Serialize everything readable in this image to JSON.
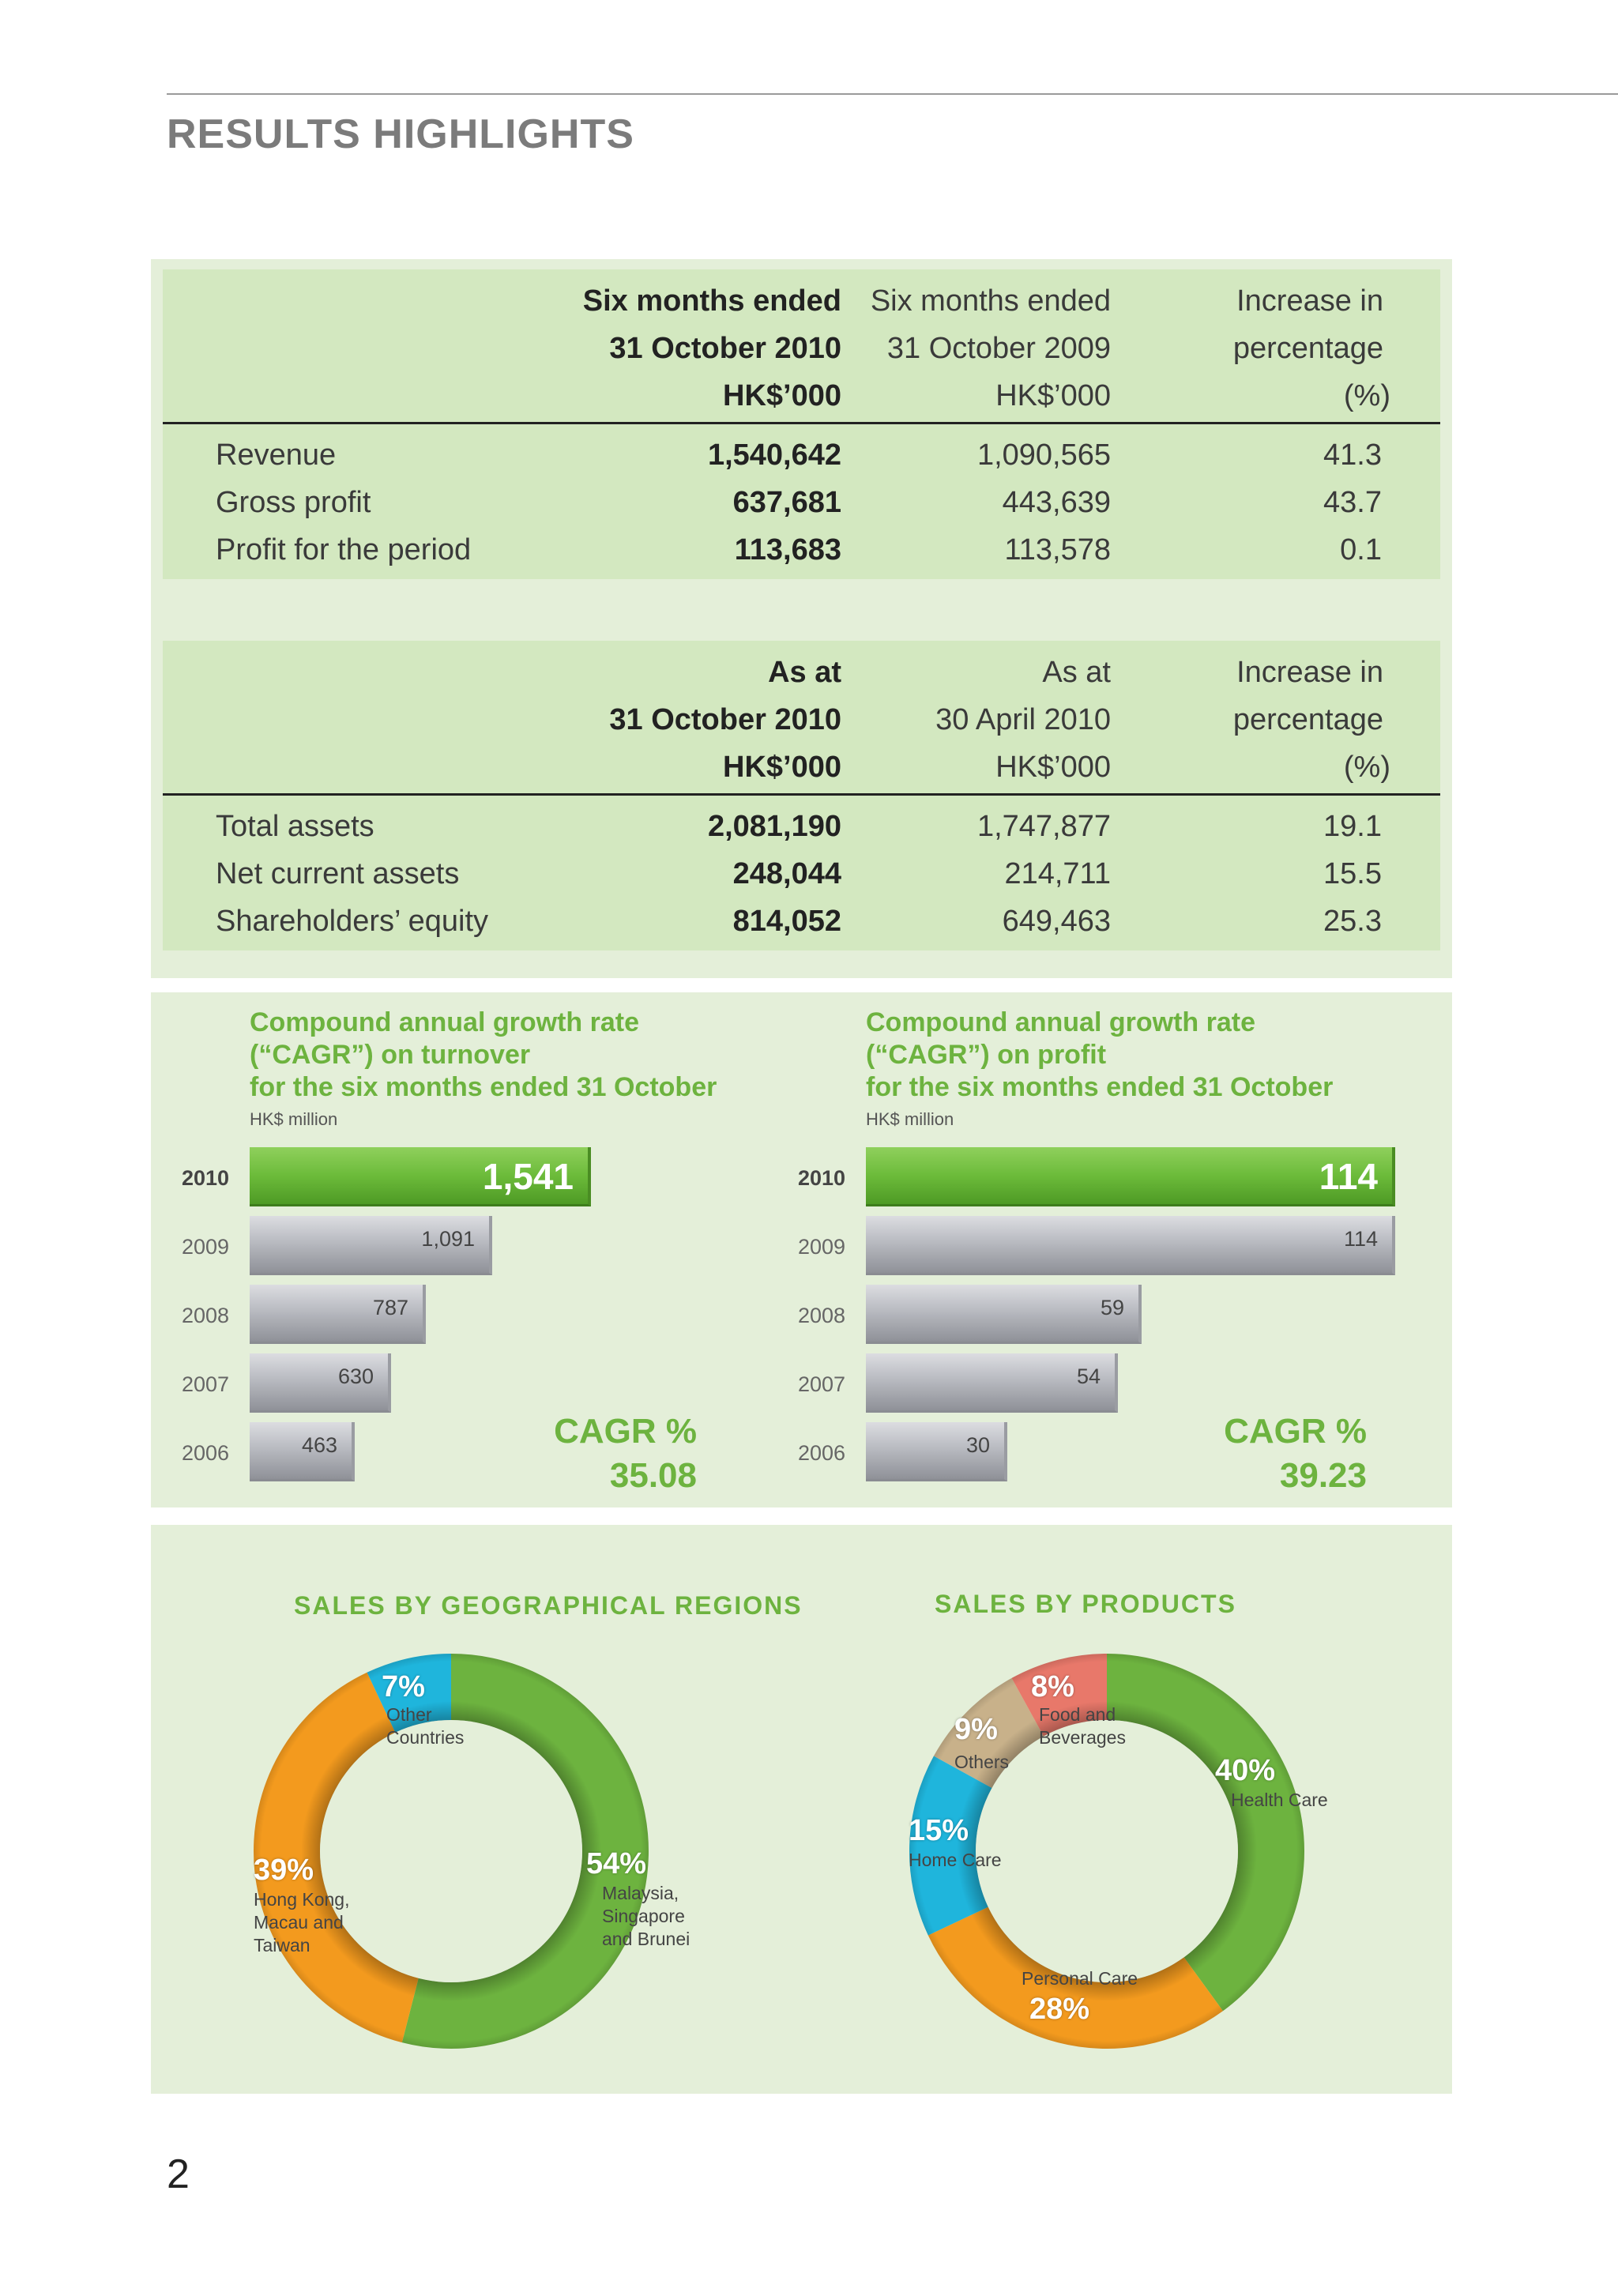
{
  "page_title": "RESULTS HIGHLIGHTS",
  "page_number": "2",
  "table1": {
    "header": {
      "col1": [
        "Six months ended",
        "31 October 2010",
        "HK$’000"
      ],
      "col2": [
        "Six months ended",
        "31 October 2009",
        "HK$’000"
      ],
      "col3": [
        "Increase in",
        "percentage",
        "(%)"
      ]
    },
    "rows": [
      {
        "label": "Revenue",
        "v1": "1,540,642",
        "v2": "1,090,565",
        "v3": "41.3"
      },
      {
        "label": "Gross profit",
        "v1": "637,681",
        "v2": "443,639",
        "v3": "43.7"
      },
      {
        "label": "Profit for the period",
        "v1": "113,683",
        "v2": "113,578",
        "v3": "0.1"
      }
    ]
  },
  "table2": {
    "header": {
      "col1": [
        "As at",
        "31 October 2010",
        "HK$’000"
      ],
      "col2": [
        "As at",
        "30 April 2010",
        "HK$’000"
      ],
      "col3": [
        "Increase in",
        "percentage",
        "(%)"
      ]
    },
    "rows": [
      {
        "label": "Total assets",
        "v1": "2,081,190",
        "v2": "1,747,877",
        "v3": "19.1"
      },
      {
        "label": "Net current assets",
        "v1": "248,044",
        "v2": "214,711",
        "v3": "15.5"
      },
      {
        "label": "Shareholders’ equity",
        "v1": "814,052",
        "v2": "649,463",
        "v3": "25.3"
      }
    ]
  },
  "colors": {
    "green": "#6db33f",
    "orange": "#f39a1e",
    "blue": "#1fb5dc",
    "tan": "#c8b18a",
    "salmon": "#e8786a"
  },
  "chart_data": [
    {
      "type": "bar",
      "title": [
        "Compound annual growth rate",
        "(“CAGR”) on turnover",
        "for the six months ended 31 October"
      ],
      "unit": "HK$ million",
      "categories": [
        "2010",
        "2009",
        "2008",
        "2007",
        "2006"
      ],
      "values": [
        1541,
        1091,
        787,
        630,
        463
      ],
      "value_labels": [
        "1,541",
        "1,091",
        "787",
        "630",
        "463"
      ],
      "cagr_label": "CAGR %",
      "cagr_value": "35.08"
    },
    {
      "type": "bar",
      "title": [
        "Compound annual growth rate",
        "(“CAGR”) on profit",
        "for the six months ended 31 October"
      ],
      "unit": "HK$ million",
      "categories": [
        "2010",
        "2009",
        "2008",
        "2007",
        "2006"
      ],
      "values": [
        114,
        114,
        59,
        54,
        30
      ],
      "value_labels": [
        "114",
        "114",
        "59",
        "54",
        "30"
      ],
      "cagr_label": "CAGR %",
      "cagr_value": "39.23"
    },
    {
      "type": "pie",
      "title": "SALES BY GEOGRAPHICAL REGIONS",
      "slices": [
        {
          "pct": "54%",
          "value": 54,
          "label": [
            "Malaysia,",
            "Singapore",
            "and Brunei"
          ],
          "color": "#6db33f"
        },
        {
          "pct": "39%",
          "value": 39,
          "label": [
            "Hong Kong,",
            "Macau and",
            "Taiwan"
          ],
          "color": "#f39a1e"
        },
        {
          "pct": "7%",
          "value": 7,
          "label": [
            "Other",
            "Countries"
          ],
          "color": "#1fb5dc"
        }
      ]
    },
    {
      "type": "pie",
      "title": "SALES BY PRODUCTS",
      "slices": [
        {
          "pct": "40%",
          "value": 40,
          "label": [
            "Health Care"
          ],
          "color": "#6db33f"
        },
        {
          "pct": "28%",
          "value": 28,
          "label": [
            "Personal Care"
          ],
          "color": "#f39a1e"
        },
        {
          "pct": "15%",
          "value": 15,
          "label": [
            "Home Care"
          ],
          "color": "#1fb5dc"
        },
        {
          "pct": "9%",
          "value": 9,
          "label": [
            "Others"
          ],
          "color": "#c8b18a"
        },
        {
          "pct": "8%",
          "value": 8,
          "label": [
            "Food and",
            "Beverages"
          ],
          "color": "#e8786a"
        }
      ]
    }
  ]
}
